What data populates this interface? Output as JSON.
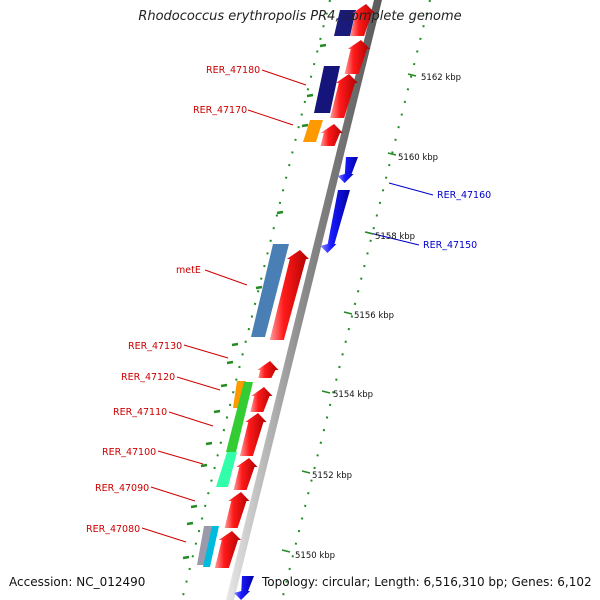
{
  "title": "Rhodococcus erythropolis PR4, complete genome",
  "footer": {
    "accession": "Accession: NC_012490",
    "topology": "Topology: circular; Length: 6,516,310 bp; Genes: 6,102"
  },
  "colors": {
    "forward_gene": "#ff0000",
    "reverse_gene": "#0000ff",
    "label_forward": "#cc0000",
    "label_reverse": "#0000cc",
    "backbone": "#8a8a8a",
    "ticks": "#228b22"
  },
  "ticks": [
    "5150 kbp",
    "5152 kbp",
    "5154 kbp",
    "5156 kbp",
    "5158 kbp",
    "5160 kbp",
    "5162 kbp"
  ],
  "genes": [
    {
      "name": "RER_47180",
      "strand": "forward"
    },
    {
      "name": "RER_47170",
      "strand": "forward"
    },
    {
      "name": "RER_47160",
      "strand": "reverse"
    },
    {
      "name": "RER_47150",
      "strand": "reverse"
    },
    {
      "name": "metE",
      "strand": "forward"
    },
    {
      "name": "RER_47130",
      "strand": "forward"
    },
    {
      "name": "RER_47120",
      "strand": "forward"
    },
    {
      "name": "RER_47110",
      "strand": "forward"
    },
    {
      "name": "RER_47100",
      "strand": "forward"
    },
    {
      "name": "RER_47090",
      "strand": "forward"
    },
    {
      "name": "RER_47080",
      "strand": "forward"
    }
  ]
}
